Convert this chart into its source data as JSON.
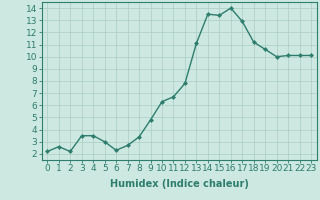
{
  "x": [
    0,
    1,
    2,
    3,
    4,
    5,
    6,
    7,
    8,
    9,
    10,
    11,
    12,
    13,
    14,
    15,
    16,
    17,
    18,
    19,
    20,
    21,
    22,
    23
  ],
  "y": [
    2.2,
    2.6,
    2.2,
    3.5,
    3.5,
    3.0,
    2.3,
    2.7,
    3.4,
    4.8,
    6.3,
    6.7,
    7.8,
    11.1,
    13.5,
    13.4,
    14.0,
    12.9,
    11.2,
    10.6,
    10.0,
    10.1,
    10.1,
    10.1
  ],
  "line_color": "#2e7d6e",
  "marker": "D",
  "marker_size": 2,
  "line_width": 1.0,
  "bg_color": "#cce8e0",
  "grid_color": "#aaccc4",
  "xlabel": "Humidex (Indice chaleur)",
  "ylabel": "",
  "xlim": [
    -0.5,
    23.5
  ],
  "ylim": [
    1.5,
    14.5
  ],
  "yticks": [
    2,
    3,
    4,
    5,
    6,
    7,
    8,
    9,
    10,
    11,
    12,
    13,
    14
  ],
  "xticks": [
    0,
    1,
    2,
    3,
    4,
    5,
    6,
    7,
    8,
    9,
    10,
    11,
    12,
    13,
    14,
    15,
    16,
    17,
    18,
    19,
    20,
    21,
    22,
    23
  ],
  "xlabel_fontsize": 7,
  "tick_fontsize": 6.5
}
